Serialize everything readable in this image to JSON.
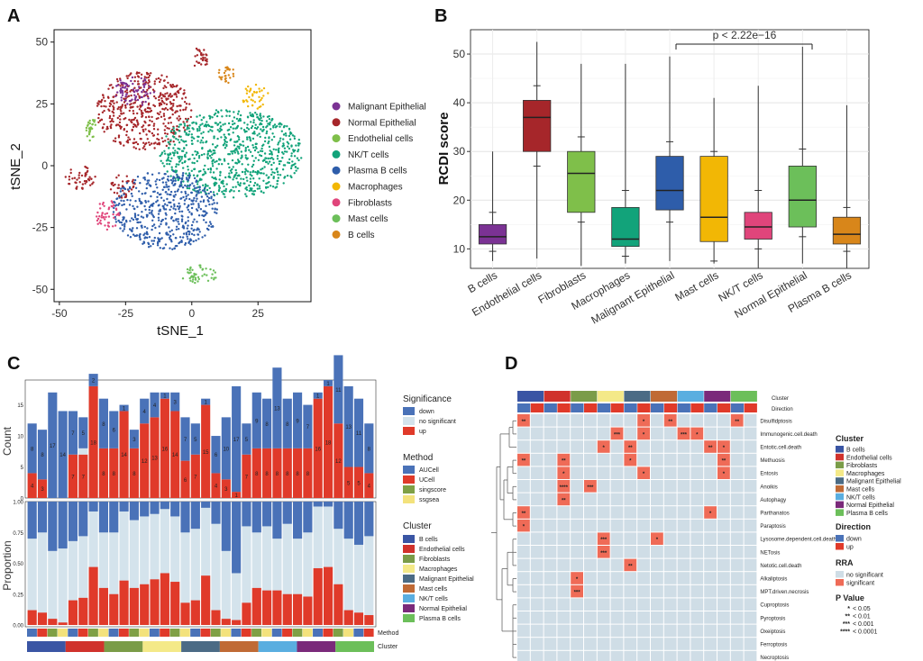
{
  "panels": {
    "a": "A",
    "b": "B",
    "c": "C",
    "d": "D"
  },
  "colors": {
    "Malignant Epithelial": "#7b3294",
    "Normal Epithelial": "#a6262a",
    "Endothelial cells": "#7fbf4a",
    "NK/T cells": "#12a37a",
    "Plasma B cells": "#2e5daa",
    "Macrophages": "#f2b705",
    "Fibroblasts": "#e0457b",
    "Mast cells": "#6cbf5a",
    "B cells": "#d8861a",
    "sig_down": "#4a72b8",
    "sig_no": "#d4e3ec",
    "sig_up": "#e03a2a"
  },
  "chart_data": [
    {
      "type": "scatter",
      "title": "",
      "xlabel": "tSNE_1",
      "ylabel": "tSNE_2",
      "xlim": [
        -52,
        45
      ],
      "ylim": [
        -55,
        55
      ],
      "xticks": [
        "-50",
        "-25",
        "0",
        "25"
      ],
      "yticks": [
        "50",
        "25",
        "0",
        "-25",
        "-50"
      ],
      "legend": [
        "Malignant Epithelial",
        "Normal Epithelial",
        "Endothelial cells",
        "NK/T cells",
        "Plasma B cells",
        "Macrophages",
        "Fibroblasts",
        "Mast cells",
        "B cells"
      ],
      "clusters": [
        {
          "name": "Normal Epithelial",
          "cx": -18,
          "cy": 22,
          "rx": 18,
          "ry": 16
        },
        {
          "name": "Normal Epithelial",
          "cx": -42,
          "cy": -5,
          "rx": 6,
          "ry": 5
        },
        {
          "name": "Normal Epithelial",
          "cx": -26,
          "cy": -8,
          "rx": 5,
          "ry": 5
        },
        {
          "name": "Normal Epithelial",
          "cx": 3,
          "cy": 43,
          "rx": 3,
          "ry": 5
        },
        {
          "name": "Malignant Epithelial",
          "cx": -22,
          "cy": 30,
          "rx": 8,
          "ry": 6
        },
        {
          "name": "Endothelial cells",
          "cx": -38,
          "cy": 15,
          "rx": 2,
          "ry": 5
        },
        {
          "name": "NK/T cells",
          "cx": 15,
          "cy": 5,
          "rx": 27,
          "ry": 18
        },
        {
          "name": "Plasma B cells",
          "cx": -10,
          "cy": -18,
          "rx": 20,
          "ry": 16
        },
        {
          "name": "Macrophages",
          "cx": 24,
          "cy": 28,
          "rx": 5,
          "ry": 5
        },
        {
          "name": "Fibroblasts",
          "cx": -32,
          "cy": -20,
          "rx": 5,
          "ry": 6
        },
        {
          "name": "Mast cells",
          "cx": 3,
          "cy": -44,
          "rx": 7,
          "ry": 4
        },
        {
          "name": "B cells",
          "cx": 13,
          "cy": 37,
          "rx": 3,
          "ry": 4
        }
      ]
    },
    {
      "type": "box",
      "ylabel": "RCDI score",
      "ylim": [
        6,
        55
      ],
      "yticks": [
        "10",
        "20",
        "30",
        "40",
        "50"
      ],
      "annotation": "p < 2.22e−16",
      "categories": [
        "B cells",
        "Endothelial cells",
        "Fibroblasts",
        "Macrophages",
        "Malignant Epithelial",
        "Mast cells",
        "NK/T cells",
        "Normal Epithelial",
        "Plasma B cells"
      ],
      "boxes": [
        {
          "min": 7.5,
          "q1": 11,
          "median": 12.5,
          "q3": 15,
          "max": 30,
          "w_lo": 9.5,
          "w_hi": 17.5,
          "color": "#7b3294"
        },
        {
          "min": 8,
          "q1": 30,
          "median": 37,
          "q3": 40.5,
          "max": 52.5,
          "w_lo": 27,
          "w_hi": 43.5,
          "color": "#a6262a"
        },
        {
          "min": 6.5,
          "q1": 17.5,
          "median": 25.5,
          "q3": 30,
          "max": 48,
          "w_lo": 15.5,
          "w_hi": 33,
          "color": "#7fbf4a"
        },
        {
          "min": 7,
          "q1": 10.5,
          "median": 12,
          "q3": 18.5,
          "max": 48,
          "w_lo": 8.5,
          "w_hi": 22,
          "color": "#12a37a"
        },
        {
          "min": 7.5,
          "q1": 18,
          "median": 22,
          "q3": 29,
          "max": 49.5,
          "w_lo": 15.5,
          "w_hi": 32,
          "color": "#2e5daa"
        },
        {
          "min": 7,
          "q1": 11.5,
          "median": 16.5,
          "q3": 29,
          "max": 41,
          "w_lo": 7.5,
          "w_hi": 30,
          "color": "#f2b705"
        },
        {
          "min": 6,
          "q1": 12,
          "median": 14.5,
          "q3": 17.5,
          "max": 43.5,
          "w_lo": 10,
          "w_hi": 22,
          "color": "#e0457b"
        },
        {
          "min": 7,
          "q1": 14.5,
          "median": 20,
          "q3": 27,
          "max": 51.5,
          "w_lo": 12.5,
          "w_hi": 30.5,
          "color": "#6cbf5a"
        },
        {
          "min": 6,
          "q1": 11,
          "median": 13,
          "q3": 16.5,
          "max": 39.5,
          "w_lo": 9.5,
          "w_hi": 18.5,
          "color": "#d8861a"
        }
      ]
    },
    {
      "type": "bar",
      "ylabel_top": "Count",
      "ylabel_bottom": "Proportion",
      "yticks_top": [
        "15",
        "10",
        "5",
        "0"
      ],
      "yticks_bottom": [
        "1.00",
        "0.75",
        "0.50",
        "0.25",
        "0.00"
      ],
      "up": [
        4,
        3,
        0,
        0,
        7,
        7,
        18,
        8,
        8,
        14,
        8,
        12,
        13,
        16,
        14,
        6,
        7,
        15,
        4,
        3,
        1,
        7,
        8,
        8,
        8,
        8,
        8,
        8,
        16,
        18,
        12,
        5,
        5,
        4
      ],
      "down": [
        8,
        8,
        17,
        14,
        7,
        5,
        2,
        8,
        6,
        1,
        3,
        4,
        4,
        1,
        3,
        7,
        5,
        1,
        6,
        10,
        17,
        5,
        9,
        8,
        13,
        8,
        9,
        7,
        1,
        1,
        11,
        13,
        11,
        8
      ],
      "no_sig": [
        0,
        0,
        0,
        0,
        0,
        1,
        0,
        0,
        0,
        0,
        0,
        0,
        0,
        0,
        0,
        0,
        0,
        0,
        0,
        0,
        0,
        0,
        0,
        0,
        0,
        0,
        0,
        0,
        0,
        0,
        0,
        0,
        0,
        0
      ],
      "up_labels": [
        "4",
        "3",
        "",
        "",
        "7",
        "7",
        "18",
        "8",
        "8",
        "14",
        "8",
        "12",
        "13",
        "16",
        "14",
        "6",
        "7",
        "15",
        "4",
        "3",
        "1",
        "7",
        "8",
        "8",
        "8",
        "8",
        "8",
        "8",
        "16",
        "18",
        "12",
        "5",
        "5",
        "4"
      ],
      "down_labels": [
        "8",
        "8",
        "17",
        "14",
        "7",
        "5",
        "2",
        "8",
        "6",
        "1",
        "3",
        "4",
        "4",
        "1",
        "3",
        "7",
        "5",
        "1",
        "6",
        "10",
        "17",
        "5",
        "9",
        "8",
        "13",
        "8",
        "9",
        "7",
        "1",
        "1",
        "11",
        "13",
        "11",
        "8"
      ],
      "up_prop": [
        0.12,
        0.1,
        0.05,
        0.02,
        0.2,
        0.22,
        0.47,
        0.3,
        0.25,
        0.36,
        0.3,
        0.33,
        0.37,
        0.42,
        0.35,
        0.18,
        0.2,
        0.4,
        0.12,
        0.05,
        0.04,
        0.18,
        0.3,
        0.28,
        0.28,
        0.25,
        0.25,
        0.23,
        0.46,
        0.47,
        0.33,
        0.12,
        0.1,
        0.08
      ],
      "down_prop": [
        0.3,
        0.25,
        0.4,
        0.38,
        0.32,
        0.28,
        0.08,
        0.25,
        0.25,
        0.08,
        0.15,
        0.12,
        0.1,
        0.06,
        0.12,
        0.25,
        0.22,
        0.05,
        0.18,
        0.4,
        0.58,
        0.2,
        0.25,
        0.2,
        0.3,
        0.18,
        0.3,
        0.25,
        0.04,
        0.04,
        0.22,
        0.3,
        0.35,
        0.28
      ],
      "method_row_label": "Method",
      "cluster_row_label": "Cluster",
      "legend_significance_title": "Significance",
      "legend_significance": [
        "down",
        "no significant",
        "up"
      ],
      "legend_method_title": "Method",
      "legend_method": [
        "AUCell",
        "UCell",
        "singscore",
        "ssgsea"
      ],
      "legend_cluster_title": "Cluster",
      "legend_cluster": [
        "B cells",
        "Endothelial cells",
        "Fibroblasts",
        "Macrophages",
        "Malignant Epithelial",
        "Mast cells",
        "NK/T cells",
        "Normal Epithelial",
        "Plasma B cells"
      ]
    },
    {
      "type": "heatmap",
      "rows": [
        "Disulfidptosis",
        "Immunogenic.cell.death",
        "Entotic.cell.death",
        "Methuosis",
        "Entosis",
        "Anoikis",
        "Autophagy",
        "Parthanatos",
        "Paraptosis",
        "Lysosome.dependent.cell.death",
        "NETosis",
        "Netotic.cell.death",
        "Alkaliptosis",
        "MPT.driven.necrosis",
        "Cuproptosis",
        "Pyroptosis",
        "Oxeiptosis",
        "Ferroptosis",
        "Necroptosis"
      ],
      "n_cols": 18,
      "col_label_cluster": "Cluster",
      "col_label_direction": "Direction",
      "cells": [
        {
          "r": 0,
          "c": 0,
          "t": "**"
        },
        {
          "r": 0,
          "c": 9,
          "t": "*"
        },
        {
          "r": 0,
          "c": 11,
          "t": "**"
        },
        {
          "r": 0,
          "c": 16,
          "t": "**"
        },
        {
          "r": 1,
          "c": 7,
          "t": "***"
        },
        {
          "r": 1,
          "c": 9,
          "t": "*"
        },
        {
          "r": 1,
          "c": 12,
          "t": "***"
        },
        {
          "r": 1,
          "c": 13,
          "t": "*"
        },
        {
          "r": 2,
          "c": 6,
          "t": "*"
        },
        {
          "r": 2,
          "c": 8,
          "t": "**"
        },
        {
          "r": 2,
          "c": 14,
          "t": "**"
        },
        {
          "r": 2,
          "c": 15,
          "t": "*"
        },
        {
          "r": 3,
          "c": 0,
          "t": "**"
        },
        {
          "r": 3,
          "c": 3,
          "t": "**"
        },
        {
          "r": 3,
          "c": 8,
          "t": "*"
        },
        {
          "r": 3,
          "c": 15,
          "t": "**"
        },
        {
          "r": 4,
          "c": 3,
          "t": "*"
        },
        {
          "r": 4,
          "c": 9,
          "t": "*"
        },
        {
          "r": 4,
          "c": 15,
          "t": "*"
        },
        {
          "r": 5,
          "c": 3,
          "t": "****"
        },
        {
          "r": 5,
          "c": 5,
          "t": "***"
        },
        {
          "r": 6,
          "c": 3,
          "t": "**"
        },
        {
          "r": 7,
          "c": 0,
          "t": "**"
        },
        {
          "r": 7,
          "c": 14,
          "t": "*"
        },
        {
          "r": 8,
          "c": 0,
          "t": "*"
        },
        {
          "r": 9,
          "c": 6,
          "t": "***"
        },
        {
          "r": 9,
          "c": 10,
          "t": "*"
        },
        {
          "r": 10,
          "c": 6,
          "t": "***"
        },
        {
          "r": 11,
          "c": 8,
          "t": "**"
        },
        {
          "r": 12,
          "c": 4,
          "t": "*"
        },
        {
          "r": 13,
          "c": 4,
          "t": "***"
        }
      ],
      "legend_cluster_title": "Cluster",
      "legend_cluster": [
        "B cells",
        "Endothelial cells",
        "Fibroblasts",
        "Macrophages",
        "Malignant Epithelial",
        "Mast cells",
        "NK/T cells",
        "Normal Epithelial",
        "Plasma B cells"
      ],
      "legend_direction_title": "Direction",
      "legend_direction": [
        "down",
        "up"
      ],
      "legend_rra_title": "RRA",
      "legend_rra": [
        "no significant",
        "significant"
      ],
      "legend_p_title": "P Value",
      "legend_p": [
        [
          "*",
          "< 0.05"
        ],
        [
          "**",
          "< 0.01"
        ],
        [
          "***",
          "< 0.001"
        ],
        [
          "****",
          "< 0.0001"
        ]
      ]
    }
  ]
}
